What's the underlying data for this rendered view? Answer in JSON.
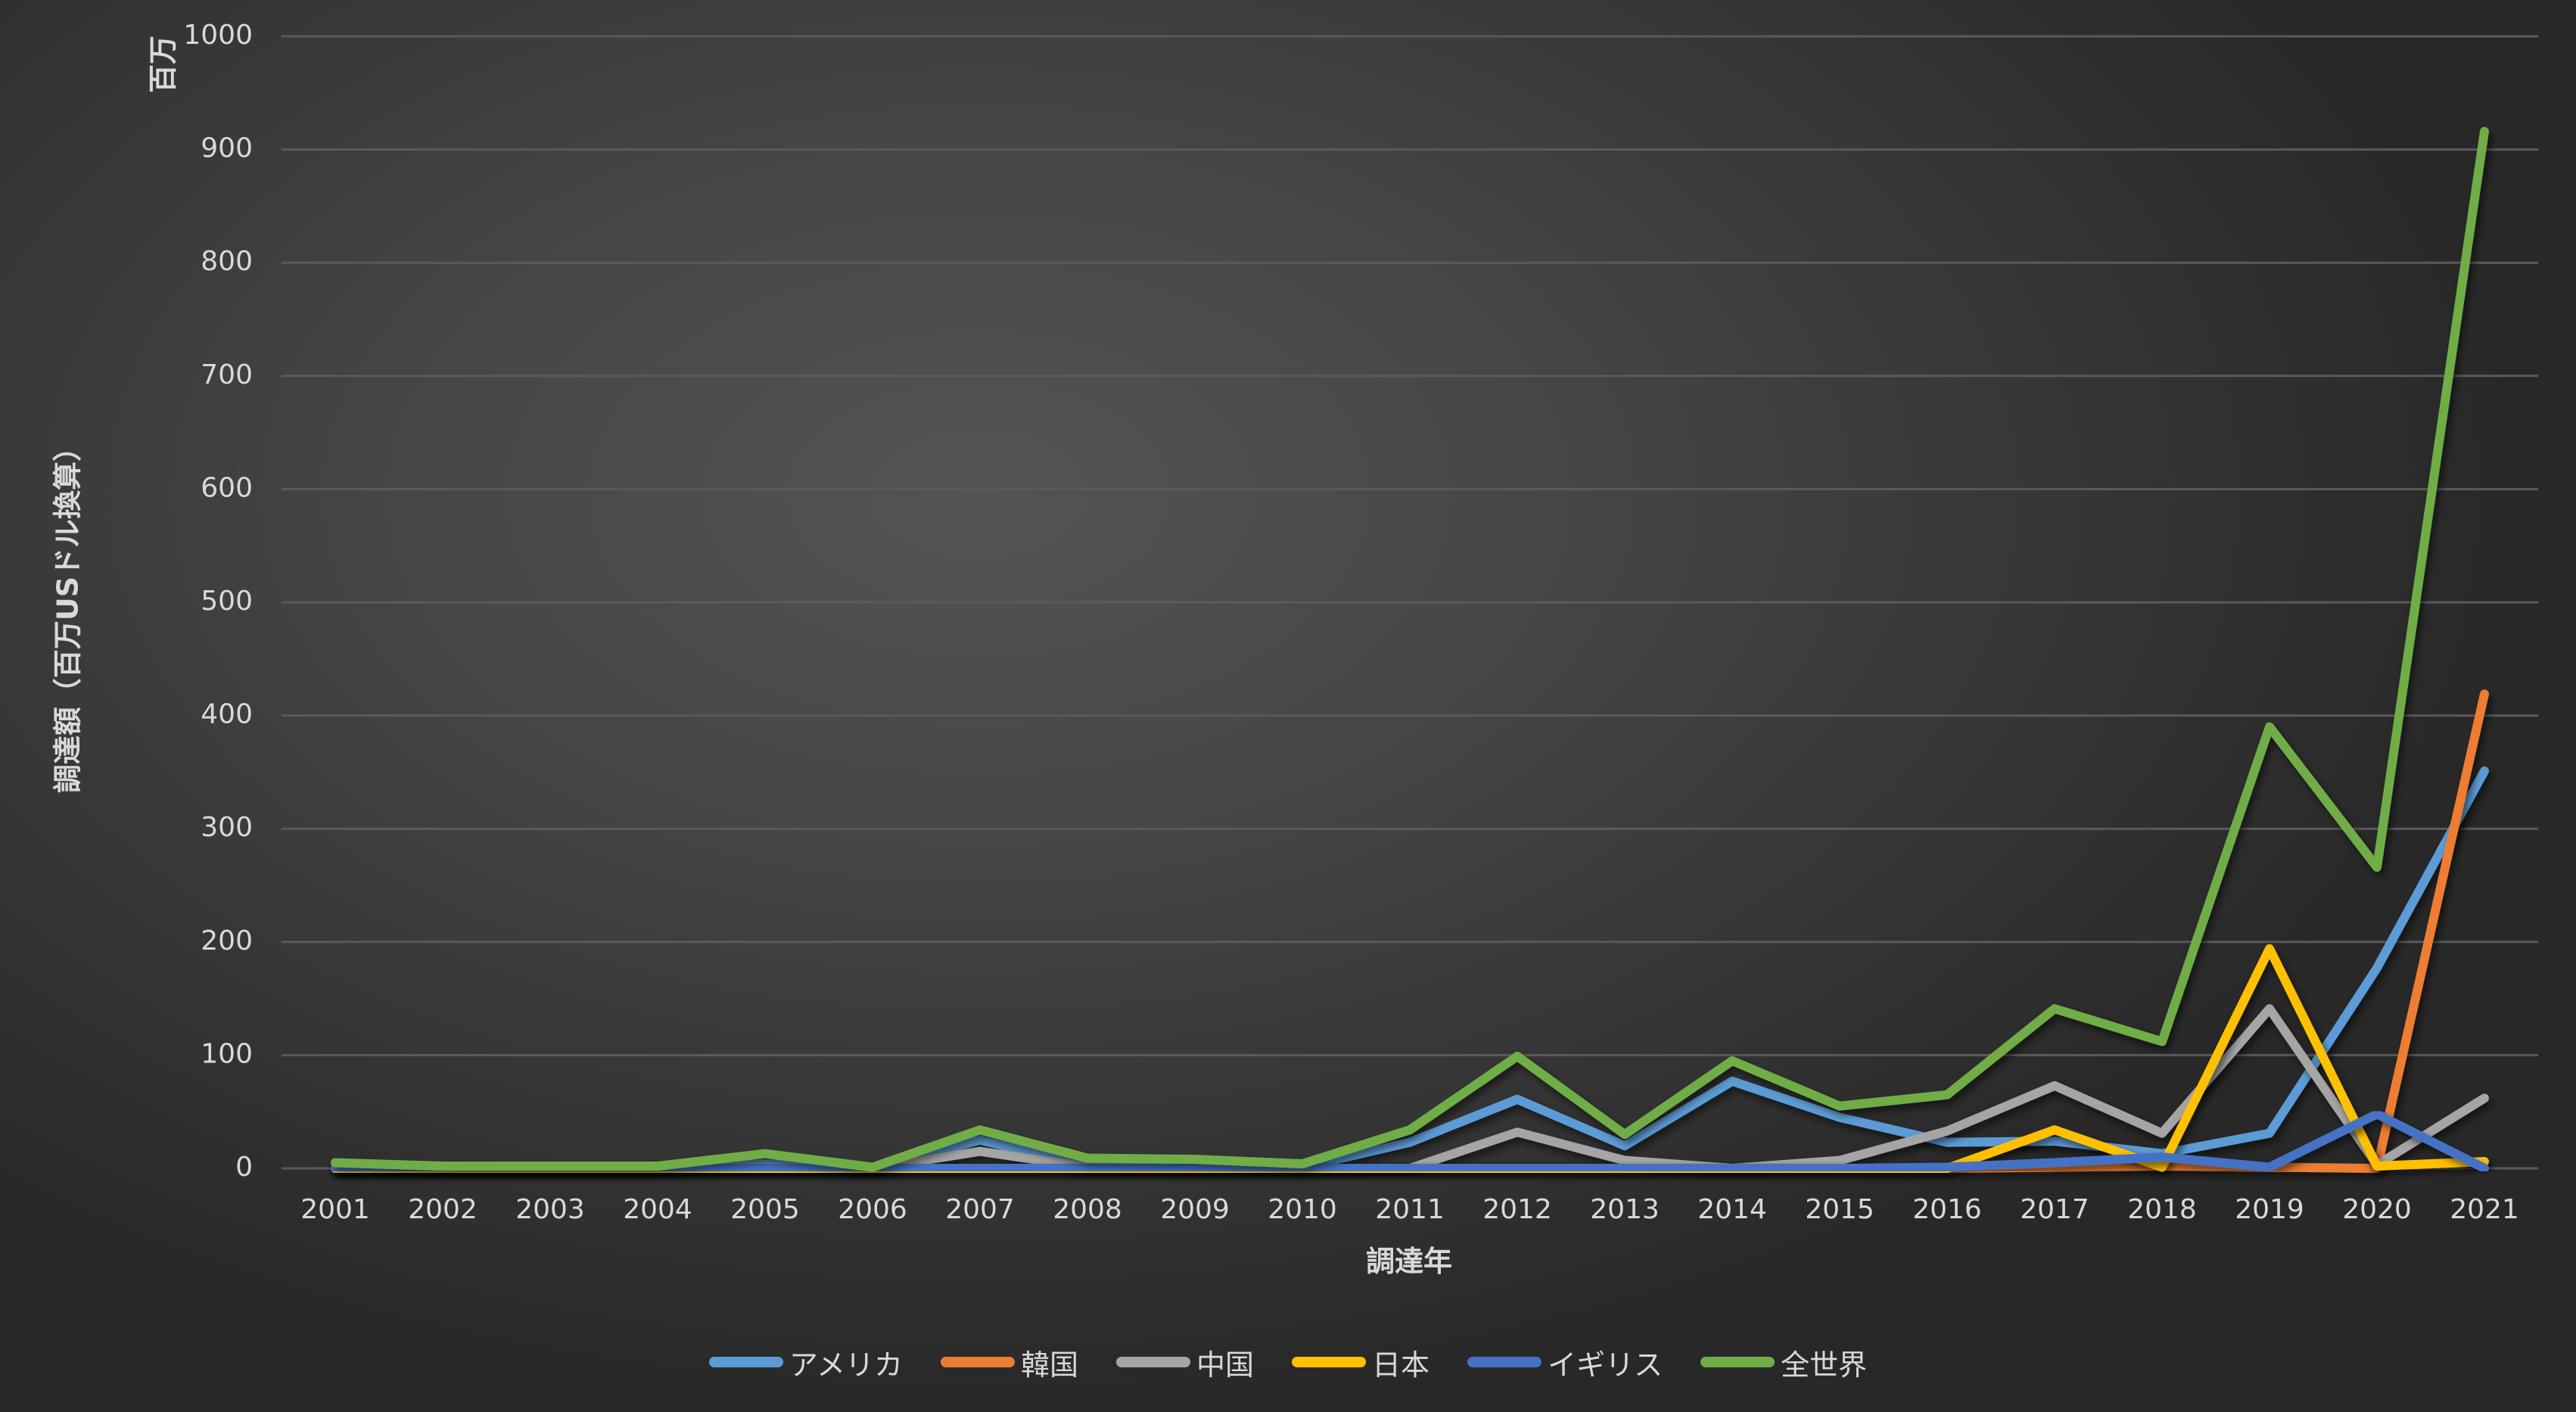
{
  "chart_data": {
    "type": "line",
    "title": "",
    "xlabel": "調達年",
    "ylabel": "調達額（百万USドル換算）",
    "y_unit_label": "百万",
    "ylim": [
      0,
      1000
    ],
    "yticks": [
      "0",
      "100",
      "200",
      "300",
      "400",
      "500",
      "600",
      "700",
      "800",
      "900",
      "1000"
    ],
    "grid": true,
    "legend_position": "bottom",
    "categories": [
      "2001",
      "2002",
      "2003",
      "2004",
      "2005",
      "2006",
      "2007",
      "2008",
      "2009",
      "2010",
      "2011",
      "2012",
      "2013",
      "2014",
      "2015",
      "2016",
      "2017",
      "2018",
      "2019",
      "2020",
      "2021"
    ],
    "series": [
      {
        "name": "アメリカ",
        "color": "#5b9bd5",
        "values": [
          1,
          0,
          0,
          0,
          4,
          0,
          25,
          2,
          2,
          1,
          23,
          61,
          20,
          77,
          45,
          23,
          24,
          13,
          31,
          177,
          351
        ]
      },
      {
        "name": "韓国",
        "color": "#ed7d31",
        "values": [
          0,
          0,
          0,
          0,
          0,
          0,
          0,
          0,
          0,
          0,
          0,
          0,
          0,
          0,
          0,
          0,
          1,
          2,
          1,
          0,
          419
        ]
      },
      {
        "name": "中国",
        "color": "#a5a5a5",
        "values": [
          0,
          0,
          0,
          0,
          1,
          0,
          15,
          1,
          0,
          0,
          0,
          32,
          7,
          0,
          7,
          33,
          73,
          31,
          141,
          3,
          62
        ]
      },
      {
        "name": "日本",
        "color": "#ffc000",
        "values": [
          0,
          0,
          0,
          0,
          0,
          0,
          0,
          0,
          0,
          0,
          0,
          0,
          0,
          0,
          0,
          0,
          34,
          1,
          194,
          2,
          6
        ]
      },
      {
        "name": "イギリス",
        "color": "#4472c4",
        "values": [
          0,
          0,
          0,
          0,
          0,
          0,
          0,
          0,
          0,
          0,
          0,
          0,
          0,
          0,
          0,
          1,
          5,
          10,
          1,
          48,
          0
        ]
      },
      {
        "name": "全世界",
        "color": "#70ad47",
        "values": [
          5,
          2,
          2,
          2,
          13,
          1,
          34,
          9,
          8,
          4,
          34,
          99,
          30,
          95,
          55,
          65,
          141,
          112,
          390,
          266,
          916
        ]
      }
    ]
  },
  "axes": {
    "x_title": "調達年",
    "y_title": "調達額（百万USドル換算）",
    "y_unit": "百万"
  },
  "legend": {
    "items": [
      {
        "label": "アメリカ",
        "color": "#5b9bd5"
      },
      {
        "label": "韓国",
        "color": "#ed7d31"
      },
      {
        "label": "中国",
        "color": "#a5a5a5"
      },
      {
        "label": "日本",
        "color": "#ffc000"
      },
      {
        "label": "イギリス",
        "color": "#4472c4"
      },
      {
        "label": "全世界",
        "color": "#70ad47"
      }
    ]
  }
}
